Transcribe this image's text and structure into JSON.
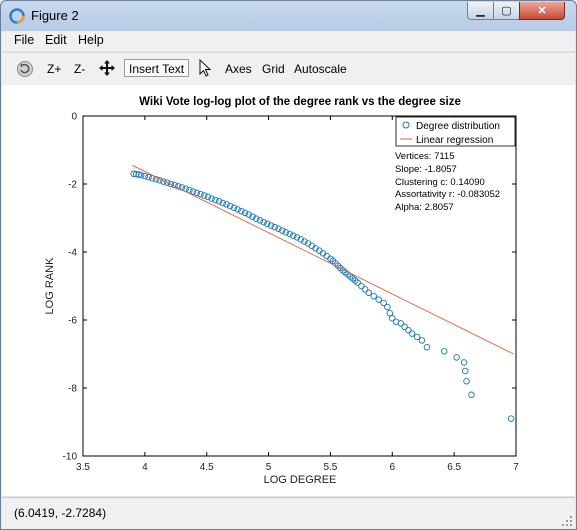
{
  "window": {
    "title": "Figure 2"
  },
  "menu": [
    "File",
    "Edit",
    "Help"
  ],
  "toolbar": {
    "zoom_in": "Z+",
    "zoom_out": "Z-",
    "insert_text": "Insert Text",
    "axes": "Axes",
    "grid": "Grid",
    "autoscale": "Autoscale"
  },
  "status": {
    "coords": "(6.0419, -2.7284)"
  },
  "colors": {
    "series": "#1f77b4",
    "regression": "#e0613c"
  },
  "chart_data": {
    "type": "scatter",
    "title": "Wiki Vote log-log plot of the degree rank vs the degree size",
    "xlabel": "LOG DEGREE",
    "ylabel": "LOG RANK",
    "xlim": [
      3.5,
      7
    ],
    "ylim": [
      -10,
      0
    ],
    "xticks": [
      "3.5",
      "4",
      "4.5",
      "5",
      "5.5",
      "6",
      "6.5",
      "7"
    ],
    "yticks": [
      "0",
      "-2",
      "-4",
      "-6",
      "-8",
      "-10"
    ],
    "grid": false,
    "legend_position": "top-right",
    "legend": [
      "Degree distribution",
      "Linear regression"
    ],
    "annotations": [
      "Vertices: 7115",
      "Slope: -1.8057",
      "Clustering c: 0.14090",
      "Assortativity r: -0.083052",
      "Alpha: 2.8057"
    ],
    "series": [
      {
        "name": "Degree distribution",
        "style": "markers",
        "x": [
          3.91,
          3.93,
          3.95,
          3.97,
          4.0,
          4.03,
          4.06,
          4.09,
          4.12,
          4.15,
          4.18,
          4.21,
          4.24,
          4.27,
          4.3,
          4.33,
          4.36,
          4.39,
          4.42,
          4.45,
          4.48,
          4.51,
          4.54,
          4.57,
          4.6,
          4.63,
          4.66,
          4.69,
          4.72,
          4.75,
          4.78,
          4.81,
          4.84,
          4.87,
          4.9,
          4.93,
          4.96,
          4.99,
          5.02,
          5.05,
          5.08,
          5.11,
          5.14,
          5.17,
          5.2,
          5.23,
          5.26,
          5.29,
          5.32,
          5.35,
          5.38,
          5.41,
          5.44,
          5.47,
          5.5,
          5.52,
          5.54,
          5.56,
          5.58,
          5.6,
          5.62,
          5.64,
          5.66,
          5.68,
          5.7,
          5.72,
          5.75,
          5.78,
          5.81,
          5.85,
          5.89,
          5.93,
          5.96,
          5.98,
          6.0,
          6.03,
          6.07,
          6.1,
          6.13,
          6.16,
          6.2,
          6.24,
          6.28,
          6.42,
          6.52,
          6.58,
          6.59,
          6.6,
          6.64,
          6.96
        ],
        "y": [
          -1.7,
          -1.71,
          -1.72,
          -1.74,
          -1.77,
          -1.8,
          -1.83,
          -1.86,
          -1.89,
          -1.93,
          -1.96,
          -2.0,
          -2.03,
          -2.07,
          -2.1,
          -2.14,
          -2.18,
          -2.22,
          -2.26,
          -2.3,
          -2.34,
          -2.38,
          -2.43,
          -2.47,
          -2.51,
          -2.56,
          -2.6,
          -2.65,
          -2.7,
          -2.75,
          -2.8,
          -2.85,
          -2.9,
          -2.96,
          -3.02,
          -3.07,
          -3.12,
          -3.17,
          -3.22,
          -3.27,
          -3.32,
          -3.37,
          -3.42,
          -3.47,
          -3.52,
          -3.57,
          -3.63,
          -3.69,
          -3.75,
          -3.82,
          -3.89,
          -3.96,
          -4.04,
          -4.12,
          -4.2,
          -4.26,
          -4.33,
          -4.4,
          -4.47,
          -4.54,
          -4.6,
          -4.66,
          -4.72,
          -4.78,
          -4.84,
          -4.9,
          -5.0,
          -5.1,
          -5.2,
          -5.3,
          -5.4,
          -5.5,
          -5.62,
          -5.8,
          -5.95,
          -6.05,
          -6.1,
          -6.2,
          -6.3,
          -6.4,
          -6.5,
          -6.6,
          -6.8,
          -6.92,
          -7.1,
          -7.25,
          -7.5,
          -7.8,
          -8.2,
          -8.9
        ]
      },
      {
        "name": "Linear regression",
        "style": "line",
        "x": [
          3.9,
          6.98
        ],
        "y": [
          -1.45,
          -7.0
        ]
      }
    ]
  }
}
